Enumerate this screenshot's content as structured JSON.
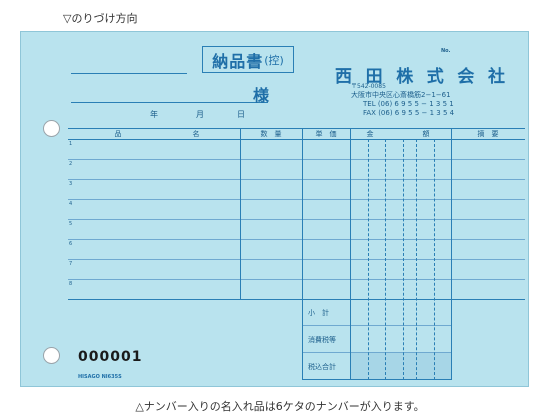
{
  "captions": {
    "top": "▽のりづけ方向",
    "bottom": "△ナンバー入りの名入れ品は6ケタのナンバーが入ります。"
  },
  "form": {
    "title": "納品書",
    "title_sub": "(控)",
    "honorific": "様",
    "date_labels": [
      "年",
      "月",
      "日"
    ],
    "no_mark": "No.",
    "company_name": [
      "西",
      "田",
      "株",
      "式",
      "会",
      "社"
    ],
    "postal": "〒542-0085",
    "address": "大阪市中央区心斎橋筋2−1−61",
    "tel": "TEL (06) 6 9 5 5 − 1 3 5 1",
    "fax": "FAX (06) 6 9 5 5 − 1 3 5 4",
    "headers": {
      "item_name_left": "品",
      "item_name_right": "名",
      "quantity": "数　量",
      "unit_price": "単　価",
      "amount_left": "金",
      "amount_right": "額",
      "remarks": "摘　要"
    },
    "row_numbers": [
      "1",
      "2",
      "3",
      "4",
      "5",
      "6",
      "7",
      "8"
    ],
    "totals": [
      "小　計",
      "消費税等",
      "税込合計"
    ],
    "serial_number": "000001",
    "maker_mark": "HISAGO NI635S"
  },
  "colors": {
    "paper": "#b9e3ee",
    "ink": "#2a7fb5",
    "text": "#1d5f8c"
  }
}
